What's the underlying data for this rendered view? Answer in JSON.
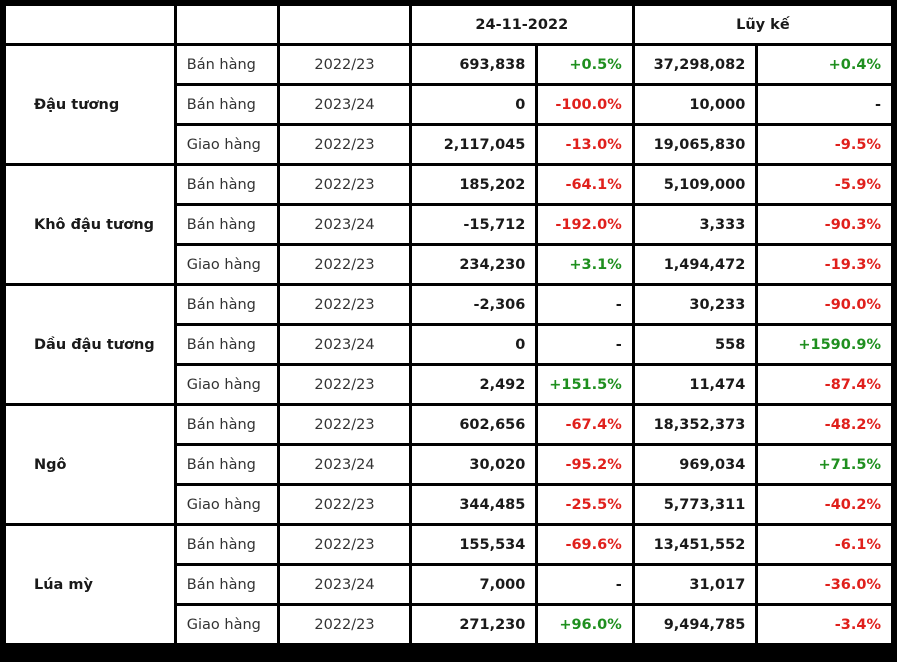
{
  "header": {
    "date": "24-11-2022",
    "cumulative": "Lũy kế"
  },
  "colors": {
    "positive": "#1f8f1f",
    "negative": "#e0201c",
    "neutral": "#1a1a1a"
  },
  "groups": [
    {
      "name": "Đậu tương",
      "rows": [
        {
          "type": "Bán hàng",
          "season": "2022/23",
          "value": "693,838",
          "change": "+0.5%",
          "change_sign": "pos",
          "cum": "37,298,082",
          "cum_change": "+0.4%",
          "cum_sign": "pos"
        },
        {
          "type": "Bán hàng",
          "season": "2023/24",
          "value": "0",
          "change": "-100.0%",
          "change_sign": "neg",
          "cum": "10,000",
          "cum_change": "-",
          "cum_sign": "neu"
        },
        {
          "type": "Giao hàng",
          "season": "2022/23",
          "value": "2,117,045",
          "change": "-13.0%",
          "change_sign": "neg",
          "cum": "19,065,830",
          "cum_change": "-9.5%",
          "cum_sign": "neg"
        }
      ]
    },
    {
      "name": "Khô đậu tương",
      "rows": [
        {
          "type": "Bán hàng",
          "season": "2022/23",
          "value": "185,202",
          "change": "-64.1%",
          "change_sign": "neg",
          "cum": "5,109,000",
          "cum_change": "-5.9%",
          "cum_sign": "neg"
        },
        {
          "type": "Bán hàng",
          "season": "2023/24",
          "value": "-15,712",
          "change": "-192.0%",
          "change_sign": "neg",
          "cum": "3,333",
          "cum_change": "-90.3%",
          "cum_sign": "neg"
        },
        {
          "type": "Giao hàng",
          "season": "2022/23",
          "value": "234,230",
          "change": "+3.1%",
          "change_sign": "pos",
          "cum": "1,494,472",
          "cum_change": "-19.3%",
          "cum_sign": "neg"
        }
      ]
    },
    {
      "name": "Dầu đậu tương",
      "rows": [
        {
          "type": "Bán hàng",
          "season": "2022/23",
          "value": "-2,306",
          "change": "-",
          "change_sign": "neu",
          "cum": "30,233",
          "cum_change": "-90.0%",
          "cum_sign": "neg"
        },
        {
          "type": "Bán hàng",
          "season": "2023/24",
          "value": "0",
          "change": "-",
          "change_sign": "neu",
          "cum": "558",
          "cum_change": "+1590.9%",
          "cum_sign": "pos"
        },
        {
          "type": "Giao hàng",
          "season": "2022/23",
          "value": "2,492",
          "change": "+151.5%",
          "change_sign": "pos",
          "cum": "11,474",
          "cum_change": "-87.4%",
          "cum_sign": "neg"
        }
      ]
    },
    {
      "name": "Ngô",
      "rows": [
        {
          "type": "Bán hàng",
          "season": "2022/23",
          "value": "602,656",
          "change": "-67.4%",
          "change_sign": "neg",
          "cum": "18,352,373",
          "cum_change": "-48.2%",
          "cum_sign": "neg"
        },
        {
          "type": "Bán hàng",
          "season": "2023/24",
          "value": "30,020",
          "change": "-95.2%",
          "change_sign": "neg",
          "cum": "969,034",
          "cum_change": "+71.5%",
          "cum_sign": "pos"
        },
        {
          "type": "Giao hàng",
          "season": "2022/23",
          "value": "344,485",
          "change": "-25.5%",
          "change_sign": "neg",
          "cum": "5,773,311",
          "cum_change": "-40.2%",
          "cum_sign": "neg"
        }
      ]
    },
    {
      "name": "Lúa mỳ",
      "rows": [
        {
          "type": "Bán hàng",
          "season": "2022/23",
          "value": "155,534",
          "change": "-69.6%",
          "change_sign": "neg",
          "cum": "13,451,552",
          "cum_change": "-6.1%",
          "cum_sign": "neg"
        },
        {
          "type": "Bán hàng",
          "season": "2023/24",
          "value": "7,000",
          "change": "-",
          "change_sign": "neu",
          "cum": "31,017",
          "cum_change": "-36.0%",
          "cum_sign": "neg"
        },
        {
          "type": "Giao hàng",
          "season": "2022/23",
          "value": "271,230",
          "change": "+96.0%",
          "change_sign": "pos",
          "cum": "9,494,785",
          "cum_change": "-3.4%",
          "cum_sign": "neg"
        }
      ]
    }
  ]
}
